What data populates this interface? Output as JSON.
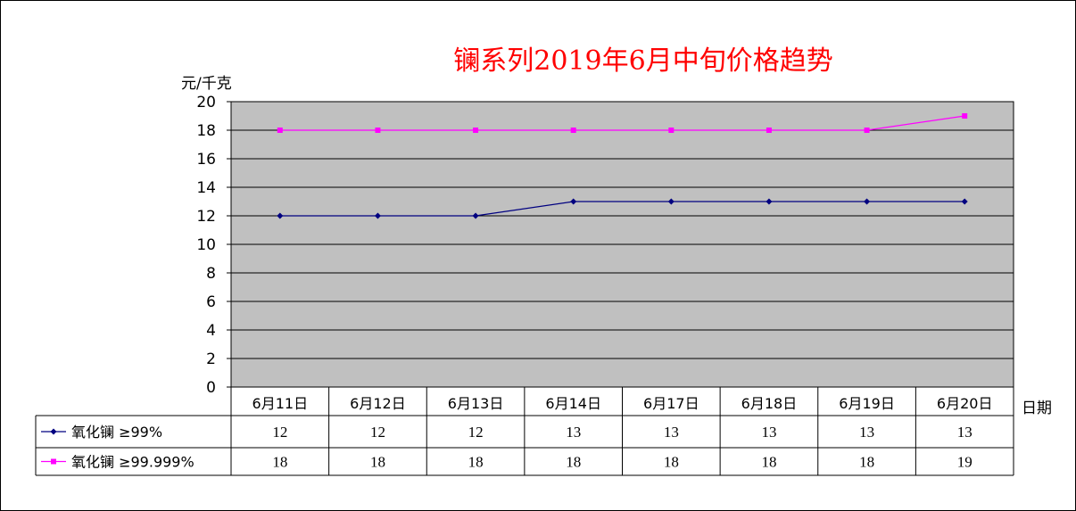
{
  "chart_data": {
    "type": "line",
    "title": "镧系列2019年6月中旬价格趋势",
    "ylabel": "元/千克",
    "xlabel": "日期",
    "ylim": [
      0,
      20
    ],
    "yticks": [
      0,
      2,
      4,
      6,
      8,
      10,
      12,
      14,
      16,
      18,
      20
    ],
    "grid": true,
    "legend": "data-table-bottom",
    "categories": [
      "6月11日",
      "6月12日",
      "6月13日",
      "6月14日",
      "6月17日",
      "6月18日",
      "6月19日",
      "6月20日"
    ],
    "series": [
      {
        "name": "氧化镧 ≥99%",
        "values": [
          12,
          12,
          12,
          13,
          13,
          13,
          13,
          13
        ],
        "color": "#000080",
        "marker": "diamond"
      },
      {
        "name": "氧化镧 ≥99.999%",
        "values": [
          18,
          18,
          18,
          18,
          18,
          18,
          18,
          19
        ],
        "color": "#ff00ff",
        "marker": "square"
      }
    ],
    "plot_background": "#c0c0c0"
  }
}
